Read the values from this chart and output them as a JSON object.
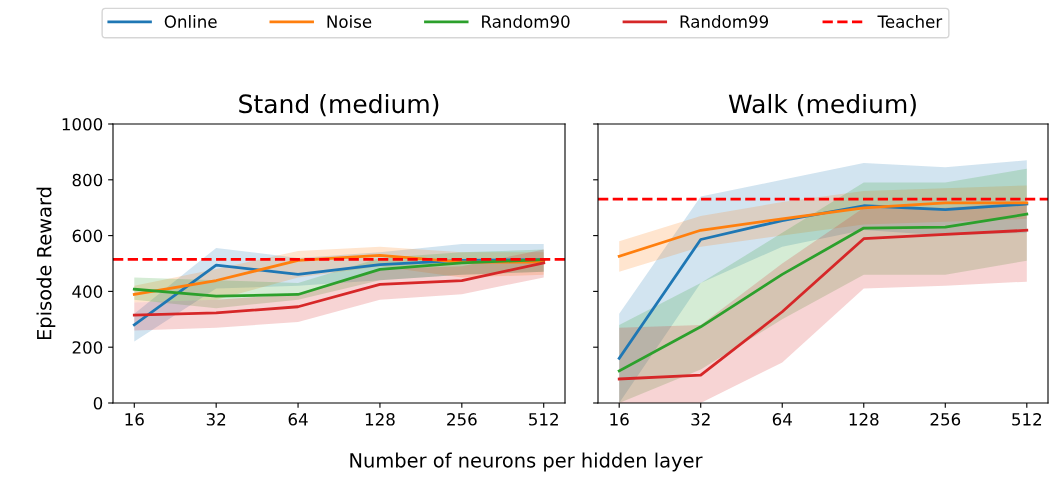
{
  "chart_data": [
    {
      "type": "line",
      "title": "Stand (medium)",
      "ylabel": "Episode Reward",
      "xlabel": "Number of neurons per hidden layer",
      "categories": [
        "16",
        "32",
        "64",
        "128",
        "256",
        "512"
      ],
      "ylim": [
        0,
        1000
      ],
      "yticks": [
        0,
        200,
        400,
        600,
        800,
        1000
      ],
      "grid": false,
      "legend": "top",
      "line_style": "solid",
      "marker": "none",
      "series": [
        {
          "name": "Online",
          "color": "#1f77b4",
          "values": [
            280,
            494,
            461,
            496,
            511,
            514
          ],
          "lower": [
            220,
            410,
            420,
            440,
            460,
            470
          ],
          "upper": [
            320,
            556,
            520,
            540,
            570,
            570
          ]
        },
        {
          "name": "Noise",
          "color": "#ff7f0e",
          "values": [
            389,
            439,
            511,
            529,
            505,
            505
          ],
          "lower": [
            360,
            370,
            450,
            490,
            450,
            460
          ],
          "upper": [
            420,
            480,
            545,
            560,
            540,
            540
          ]
        },
        {
          "name": "Random90",
          "color": "#2ca02c",
          "values": [
            408,
            383,
            389,
            479,
            502,
            514
          ],
          "lower": [
            370,
            340,
            370,
            440,
            460,
            470
          ],
          "upper": [
            450,
            440,
            430,
            520,
            540,
            550
          ]
        },
        {
          "name": "Random99",
          "color": "#d62728",
          "values": [
            315,
            323,
            345,
            425,
            439,
            502
          ],
          "lower": [
            260,
            270,
            290,
            370,
            390,
            450
          ],
          "upper": [
            360,
            370,
            390,
            480,
            490,
            550
          ]
        }
      ],
      "ref_lines": [
        {
          "axis": "y",
          "value": 515,
          "label": "Teacher",
          "color": "#ff0000",
          "line_style": "dashed"
        }
      ]
    },
    {
      "type": "line",
      "title": "Walk (medium)",
      "categories": [
        "16",
        "32",
        "64",
        "128",
        "256",
        "512"
      ],
      "ylim": [
        0,
        1000
      ],
      "yticks": [
        0,
        200,
        400,
        600,
        800,
        1000
      ],
      "grid": false,
      "tick_labels": "x",
      "line_style": "solid",
      "marker": "none",
      "series": [
        {
          "color": "#1f77b4",
          "values": [
            160,
            586,
            654,
            707,
            693,
            713
          ],
          "lower": [
            0,
            430,
            560,
            620,
            600,
            610
          ],
          "upper": [
            320,
            740,
            800,
            860,
            845,
            870
          ]
        },
        {
          "color": "#ff7f0e",
          "values": [
            526,
            619,
            660,
            699,
            717,
            717
          ],
          "lower": [
            470,
            560,
            600,
            640,
            650,
            660
          ],
          "upper": [
            580,
            670,
            720,
            760,
            770,
            780
          ]
        },
        {
          "color": "#2ca02c",
          "values": [
            115,
            273,
            461,
            627,
            630,
            677
          ],
          "lower": [
            0,
            120,
            300,
            460,
            460,
            510
          ],
          "upper": [
            280,
            430,
            610,
            790,
            790,
            840
          ]
        },
        {
          "color": "#d62728",
          "values": [
            86,
            100,
            327,
            589,
            604,
            619
          ],
          "lower": [
            0,
            0,
            145,
            410,
            420,
            435
          ],
          "upper": [
            270,
            280,
            500,
            700,
            700,
            720
          ]
        }
      ],
      "ref_lines": [
        {
          "axis": "y",
          "value": 731,
          "color": "#ff0000",
          "line_style": "dashed"
        }
      ]
    }
  ]
}
